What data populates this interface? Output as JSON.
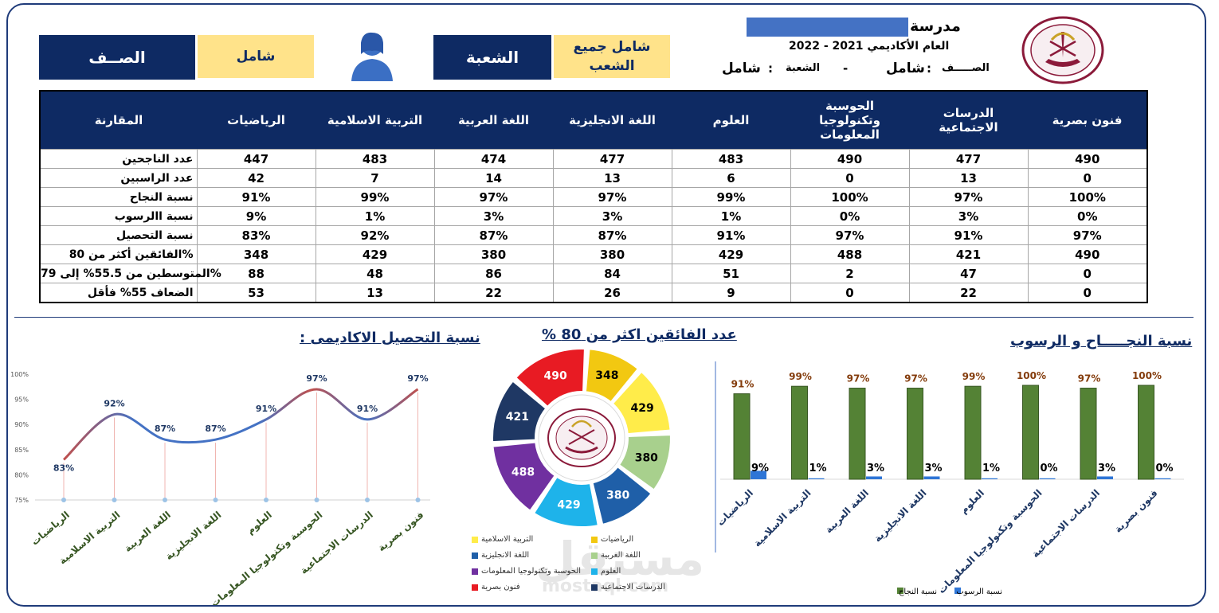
{
  "header": {
    "class_label": "الصــف",
    "class_value": "شامل",
    "section_label": "الشعبة",
    "section_value": "شامل جميع الشعب",
    "school_label": "مدرسة",
    "year_text": "العام الأكاديمي 2021 - 2022",
    "info_class_label": "الصـــــف",
    "info_class_sep": ":",
    "info_class_value": "شامل",
    "info_dash": "-",
    "info_section_label": "الشعبة",
    "info_section_sep": ":",
    "info_section_value": "شامل",
    "accent": "#0e2a63",
    "yellow": "#ffe38a"
  },
  "icons": {
    "user": "user-avatar-icon",
    "logo": "qatar-ministry-logo"
  },
  "table": {
    "corner_label": "المقارنة",
    "subjects": [
      "الرياضيات",
      "التربية الاسلامية",
      "اللغة العربية",
      "اللغة الانجليزية",
      "العلوم",
      "الحوسبة وتكنولوجيا المعلومات",
      "الدرسات الاجتماعية",
      "فنون بصرية"
    ],
    "rows": [
      {
        "label": "عدد الناجحين",
        "values": [
          "447",
          "483",
          "474",
          "477",
          "483",
          "490",
          "477",
          "490"
        ]
      },
      {
        "label": "عدد الراسبين",
        "values": [
          "42",
          "7",
          "14",
          "13",
          "6",
          "0",
          "13",
          "0"
        ]
      },
      {
        "label": "نسبة النجاح",
        "values": [
          "91%",
          "99%",
          "97%",
          "97%",
          "99%",
          "100%",
          "97%",
          "100%"
        ]
      },
      {
        "label": "نسبة االرسوب",
        "values": [
          "9%",
          "1%",
          "3%",
          "3%",
          "1%",
          "0%",
          "3%",
          "0%"
        ]
      },
      {
        "label": "نسبة التحصيل",
        "values": [
          "83%",
          "92%",
          "87%",
          "87%",
          "91%",
          "97%",
          "91%",
          "97%"
        ]
      },
      {
        "label": "الفائقين أكثر من 80%",
        "values": [
          "348",
          "429",
          "380",
          "380",
          "429",
          "488",
          "421",
          "490"
        ]
      },
      {
        "label": "المتوسطين من 55.5% إلى 79%",
        "values": [
          "88",
          "48",
          "86",
          "84",
          "51",
          "2",
          "47",
          "0"
        ]
      },
      {
        "label": "الضعاف 55% فأقل",
        "values": [
          "53",
          "13",
          "22",
          "26",
          "9",
          "0",
          "22",
          "0"
        ]
      }
    ]
  },
  "chart_data": [
    {
      "type": "line",
      "title": "نسبة التحصيل الاكاديمى :",
      "categories": [
        "الرياضيات",
        "التربية الاسلامية",
        "اللغة العربية",
        "اللغة الانجليزية",
        "العلوم",
        "الحوسبة وتكنولوجيا المعلومات",
        "الدرسات الاجتماعية",
        "فنون بصرية"
      ],
      "values": [
        83,
        92,
        87,
        87,
        91,
        97,
        91,
        97
      ],
      "data_labels": [
        "83%",
        "92%",
        "87%",
        "87%",
        "91%",
        "97%",
        "91%",
        "97%"
      ],
      "ylim": [
        75,
        100
      ],
      "yticks": [
        "75%",
        "80%",
        "85%",
        "90%",
        "95%",
        "100%"
      ],
      "colors": [
        "#4472c4",
        "#c0504d"
      ]
    },
    {
      "type": "pie",
      "title": "عدد الفائقين اكثر من 80 %",
      "categories": [
        "الرياضيات",
        "التربية الاسلامية",
        "اللغة العربية",
        "اللغة الانجليزية",
        "العلوم",
        "الحوسبة وتكنولوجيا المعلومات",
        "الدرسات الاجتماعية",
        "فنون بصرية"
      ],
      "values": [
        348,
        429,
        380,
        380,
        429,
        488,
        421,
        490
      ],
      "colors": [
        "#f2c811",
        "#ffec4a",
        "#a8d08d",
        "#1f5fa8",
        "#1eb3ea",
        "#7030a0",
        "#1f3864",
        "#e81b23"
      ],
      "legend_position": "bottom"
    },
    {
      "type": "bar",
      "title": "نسبة النجـــــاح و الرسوب",
      "categories": [
        "الرياضيات",
        "التربية الاسلامية",
        "اللغة العربية",
        "اللغة الانجليزية",
        "العلوم",
        "الحوسبة وتكنولوجيا المعلومات",
        "الدرسات الاجتماعية",
        "فنون بصرية"
      ],
      "series": [
        {
          "name": "نسبة النجاح",
          "values": [
            91,
            99,
            97,
            97,
            99,
            100,
            97,
            100
          ],
          "labels": [
            "91%",
            "99%",
            "97%",
            "97%",
            "99%",
            "100%",
            "97%",
            "100%"
          ],
          "color": "#548235"
        },
        {
          "name": "نسبة الرسوب",
          "values": [
            9,
            1,
            3,
            3,
            1,
            0,
            3,
            0
          ],
          "labels": [
            "9%",
            "1%",
            "3%",
            "3%",
            "1%",
            "0%",
            "3%",
            "0%"
          ],
          "color": "#2e75d6"
        }
      ],
      "ylim": [
        0,
        100
      ],
      "legend_position": "bottom"
    }
  ],
  "watermark": {
    "main": "مستقل",
    "sub": "mostaql.com"
  }
}
